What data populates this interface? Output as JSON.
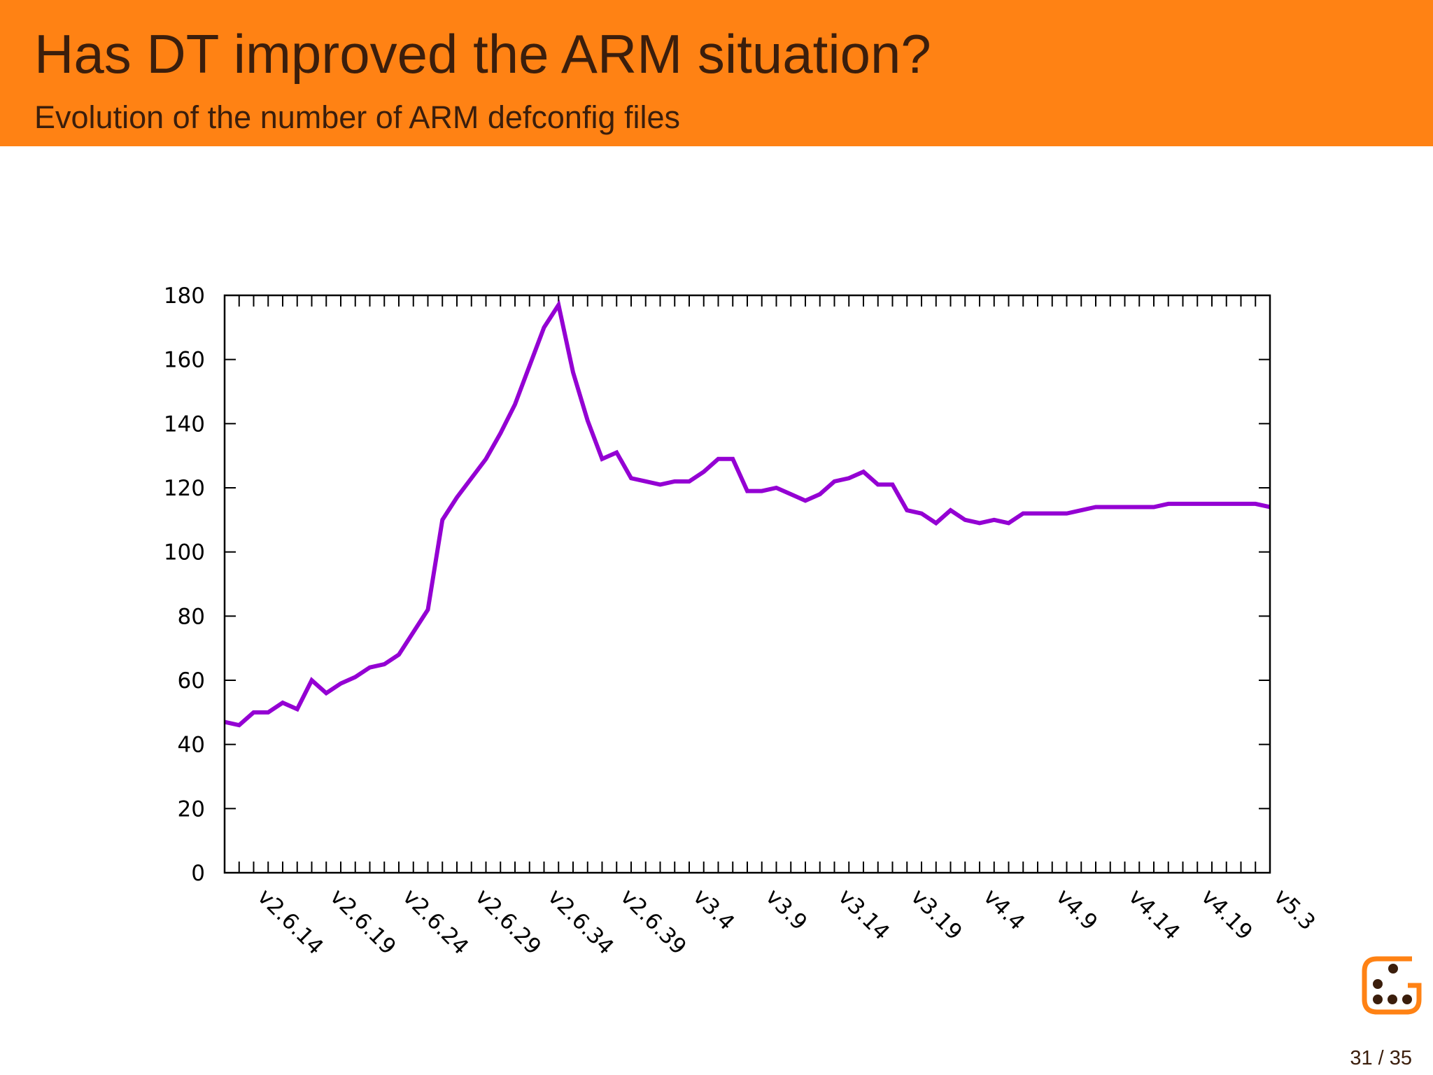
{
  "header": {
    "title": "Has DT improved the ARM situation?",
    "subtitle": "Evolution of the number of ARM defconfig files"
  },
  "chart_data": {
    "type": "line",
    "categories": [
      null,
      null,
      "v2.6.14",
      null,
      null,
      null,
      null,
      "v2.6.19",
      null,
      null,
      null,
      null,
      "v2.6.24",
      null,
      null,
      null,
      null,
      "v2.6.29",
      null,
      null,
      null,
      null,
      "v2.6.34",
      null,
      null,
      null,
      null,
      "v2.6.39",
      null,
      null,
      null,
      null,
      "v3.4",
      null,
      null,
      null,
      null,
      "v3.9",
      null,
      null,
      null,
      null,
      "v3.14",
      null,
      null,
      null,
      null,
      "v3.19",
      null,
      null,
      null,
      null,
      "v4.4",
      null,
      null,
      null,
      null,
      "v4.9",
      null,
      null,
      null,
      null,
      "v4.14",
      null,
      null,
      null,
      null,
      "v4.19",
      null,
      null,
      null,
      null,
      "v5.3"
    ],
    "values": [
      47,
      46,
      50,
      50,
      53,
      51,
      60,
      56,
      59,
      61,
      64,
      65,
      68,
      75,
      82,
      110,
      117,
      123,
      129,
      137,
      146,
      158,
      170,
      177,
      156,
      141,
      129,
      131,
      123,
      122,
      121,
      122,
      122,
      125,
      129,
      129,
      119,
      119,
      120,
      118,
      116,
      118,
      122,
      123,
      125,
      121,
      121,
      113,
      112,
      109,
      113,
      110,
      109,
      110,
      109,
      112,
      112,
      112,
      112,
      113,
      114,
      114,
      114,
      114,
      114,
      115,
      115,
      115,
      115,
      115,
      115,
      115,
      114
    ],
    "color": "#9400d3",
    "ylim": [
      0,
      180
    ],
    "yticks": [
      0,
      20,
      40,
      60,
      80,
      100,
      120,
      140,
      160,
      180
    ]
  },
  "footer": {
    "page_number": "31 / 35"
  }
}
